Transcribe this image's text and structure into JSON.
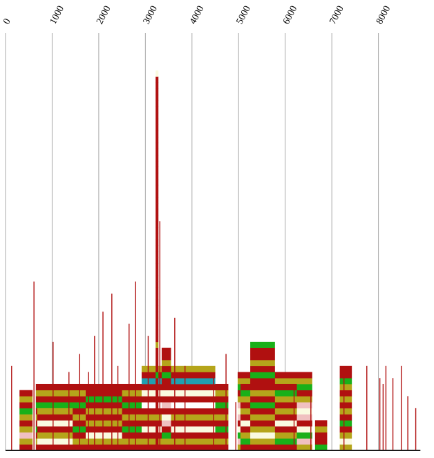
{
  "chart_data": {
    "type": "bar",
    "variant": "stacked-flame-graph",
    "title": "",
    "xlabel": "",
    "ylabel": "",
    "xlim": [
      0,
      8900
    ],
    "x_ticks": [
      0,
      1000,
      2000,
      3000,
      4000,
      5000,
      6000,
      7000,
      8000
    ],
    "tick_labels": [
      "0",
      "1000",
      "2000",
      "3000",
      "4000",
      "5000",
      "6000",
      "7000",
      "8000"
    ],
    "grid": true,
    "grid_axis": "x",
    "legend": "none",
    "stack_bar_height": 9,
    "colors": {
      "red": "#b01010",
      "olive": "#b5a51b",
      "green": "#19b019",
      "pink": "#f0c0c0",
      "cream": "#fafae0",
      "teal": "#20a0b0",
      "white": "#ffffff"
    },
    "towers": [
      {
        "start": 300,
        "end": 580,
        "colors": [
          "red",
          "olive",
          "pink",
          "olive",
          "red",
          "olive",
          "green",
          "red",
          "olive",
          "red"
        ]
      },
      {
        "start": 650,
        "end": 4780,
        "colors": [
          "red",
          "olive",
          "red",
          "green",
          "red",
          "olive",
          "red",
          "green",
          "red",
          "olive",
          "red"
        ]
      },
      {
        "start": 680,
        "end": 1440,
        "colors": [
          "red",
          "cream",
          "olive",
          "red",
          "cream",
          "red",
          "olive"
        ]
      },
      {
        "start": 1720,
        "end": 2500,
        "colors": [
          "red",
          "olive",
          "cream",
          "red",
          "olive",
          "red",
          "olive",
          "red",
          "green",
          "red"
        ]
      },
      {
        "start": 2920,
        "end": 4500,
        "colors": [
          "red",
          "olive",
          "red",
          "cream",
          "red",
          "olive",
          "red",
          "white",
          "red",
          "cream",
          "red",
          "teal",
          "red",
          "olive"
        ]
      },
      {
        "start": 3220,
        "end": 3280,
        "colors": [
          "red",
          "red",
          "red",
          "red",
          "red",
          "olive",
          "red",
          "red",
          "red",
          "red",
          "red",
          "red",
          "green",
          "red",
          "red",
          "red",
          "red",
          "olive",
          "red",
          "red",
          "red",
          "red",
          "red",
          "red",
          "red",
          "red",
          "red",
          "red",
          "red",
          "red",
          "red",
          "red",
          "red",
          "red",
          "red",
          "red",
          "red",
          "red",
          "red",
          "red",
          "red",
          "red",
          "red",
          "red",
          "red",
          "red",
          "red",
          "red",
          "red",
          "red",
          "red",
          "red",
          "red",
          "red",
          "red",
          "red",
          "red",
          "red",
          "red",
          "red",
          "red",
          "red",
          "cream"
        ]
      },
      {
        "start": 3350,
        "end": 3550,
        "colors": [
          "red",
          "olive",
          "green",
          "red",
          "pink",
          "cream",
          "red",
          "pink",
          "red",
          "cream",
          "red",
          "red",
          "green",
          "red",
          "olive",
          "red",
          "red"
        ]
      },
      {
        "start": 4980,
        "end": 6580,
        "colors": [
          "olive",
          "pink",
          "green",
          "cream",
          "red",
          "pink",
          "cream",
          "pink",
          "olive",
          "red",
          "green",
          "olive",
          "red"
        ]
      },
      {
        "start": 5040,
        "end": 6250,
        "colors": [
          "red",
          "green",
          "olive",
          "red",
          "cream",
          "red",
          "olive",
          "red",
          "olive",
          "green",
          "red"
        ]
      },
      {
        "start": 5250,
        "end": 5780,
        "colors": [
          "red",
          "olive",
          "cream",
          "olive",
          "red",
          "olive",
          "red",
          "green",
          "red",
          "olive",
          "red",
          "red",
          "green",
          "red",
          "olive",
          "red",
          "red",
          "green"
        ]
      },
      {
        "start": 6640,
        "end": 6900,
        "colors": [
          "green",
          "red",
          "red",
          "olive",
          "red"
        ]
      },
      {
        "start": 7170,
        "end": 7430,
        "colors": [
          "olive",
          "cream",
          "olive",
          "red",
          "green",
          "red",
          "olive",
          "red",
          "olive",
          "red",
          "olive",
          "green",
          "red",
          "red"
        ]
      }
    ],
    "spikes": [
      {
        "x": 120,
        "height": 14
      },
      {
        "x": 600,
        "height": 28
      },
      {
        "x": 1010,
        "height": 18
      },
      {
        "x": 1350,
        "height": 13
      },
      {
        "x": 1580,
        "height": 16
      },
      {
        "x": 1770,
        "height": 13
      },
      {
        "x": 1900,
        "height": 19
      },
      {
        "x": 2080,
        "height": 23
      },
      {
        "x": 2270,
        "height": 26
      },
      {
        "x": 2400,
        "height": 14
      },
      {
        "x": 2640,
        "height": 21
      },
      {
        "x": 2780,
        "height": 28
      },
      {
        "x": 3050,
        "height": 19
      },
      {
        "x": 3300,
        "height": 38
      },
      {
        "x": 3620,
        "height": 22
      },
      {
        "x": 3840,
        "height": 14
      },
      {
        "x": 4450,
        "height": 12
      },
      {
        "x": 4720,
        "height": 16
      },
      {
        "x": 4930,
        "height": 8
      },
      {
        "x": 6180,
        "height": 11
      },
      {
        "x": 6540,
        "height": 9
      },
      {
        "x": 7250,
        "height": 13
      },
      {
        "x": 7740,
        "height": 14
      },
      {
        "x": 8020,
        "height": 12
      },
      {
        "x": 8090,
        "height": 11
      },
      {
        "x": 8150,
        "height": 14
      },
      {
        "x": 8300,
        "height": 12
      },
      {
        "x": 8480,
        "height": 14
      },
      {
        "x": 8620,
        "height": 9
      },
      {
        "x": 8790,
        "height": 7
      }
    ]
  }
}
